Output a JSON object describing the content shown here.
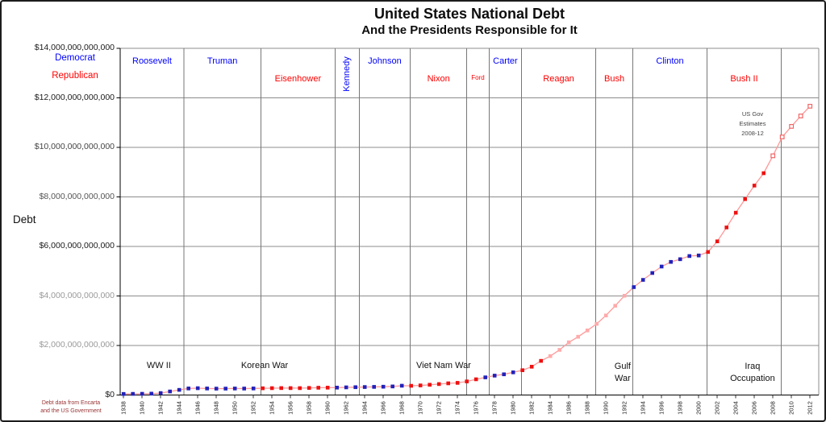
{
  "figure": {
    "title": "United States National Debt",
    "subtitle": "And the Presidents Responsible for It",
    "ylabel": "Debt",
    "legend": {
      "democrat": "Democrat",
      "republican": "Republican"
    },
    "estimates_note": [
      "US Gov",
      "Estimates",
      "2008-12"
    ],
    "source_note": [
      "Debt data from Encarta",
      "and the US Government"
    ],
    "colors": {
      "democrat_label": "#0000ff",
      "republican_label": "#ff0000",
      "marker_democrat": "#2222bb",
      "marker_republican": "#ee1111",
      "marker_faded": "#ffaaaa",
      "estimate_stroke": "#f06666",
      "line": "#ff9898",
      "grid": "#8c8c8c",
      "boundary": "#777777",
      "axis": "#000000",
      "tick_label": "#222222",
      "source_note": "#993333",
      "estimates_note": "#444444"
    }
  },
  "chart_data": {
    "type": "line",
    "title": "United States National Debt",
    "subtitle": "And the Presidents Responsible for It",
    "xlabel": "",
    "ylabel": "Debt",
    "units": "trillions of US dollars",
    "xlim": [
      1937.6,
      2012.95
    ],
    "ylim": [
      0,
      14000000000000
    ],
    "grid": "horizontal",
    "legend_position": "outside-top-left",
    "ytick_values_trillions": [
      14,
      12,
      10,
      8,
      6,
      4,
      2,
      0
    ],
    "ytick_labels": [
      "$14,000,000,000,000",
      "$12,000,000,000,000",
      "$10,000,000,000,000",
      "$8,000,000,000,000",
      "$6,000,000,000,000",
      "$4,000,000,000,000",
      "$2,000,000,000,000",
      "$0"
    ],
    "ytick_label_colors": [
      "#1a1a1a",
      "#1a1a1a",
      "#444444",
      "#555555",
      "#1a1a1a",
      "#999999",
      "#999999",
      "#1a1a1a"
    ],
    "xticks": [
      1938,
      1940,
      1942,
      1944,
      1946,
      1948,
      1950,
      1952,
      1954,
      1956,
      1958,
      1960,
      1962,
      1964,
      1966,
      1968,
      1970,
      1972,
      1974,
      1976,
      1978,
      1980,
      1982,
      1984,
      1986,
      1988,
      1990,
      1992,
      1994,
      1996,
      1998,
      2000,
      2002,
      2004,
      2006,
      2008,
      2010,
      2012
    ],
    "years": [
      1938,
      1939,
      1940,
      1941,
      1942,
      1943,
      1944,
      1945,
      1946,
      1947,
      1948,
      1949,
      1950,
      1951,
      1952,
      1953,
      1954,
      1955,
      1956,
      1957,
      1958,
      1959,
      1960,
      1961,
      1962,
      1963,
      1964,
      1965,
      1966,
      1967,
      1968,
      1969,
      1970,
      1971,
      1972,
      1973,
      1974,
      1975,
      1976,
      1977,
      1978,
      1979,
      1980,
      1981,
      1982,
      1983,
      1984,
      1985,
      1986,
      1987,
      1988,
      1989,
      1990,
      1991,
      1992,
      1993,
      1994,
      1995,
      1996,
      1997,
      1998,
      1999,
      2000,
      2001,
      2002,
      2003,
      2004,
      2005,
      2006,
      2007,
      2008,
      2009,
      2010,
      2011,
      2012
    ],
    "debt_trillions": [
      0.037,
      0.04,
      0.043,
      0.049,
      0.072,
      0.137,
      0.201,
      0.259,
      0.269,
      0.258,
      0.252,
      0.253,
      0.257,
      0.255,
      0.259,
      0.266,
      0.271,
      0.274,
      0.273,
      0.272,
      0.28,
      0.288,
      0.291,
      0.293,
      0.303,
      0.31,
      0.316,
      0.322,
      0.329,
      0.34,
      0.369,
      0.366,
      0.381,
      0.408,
      0.436,
      0.466,
      0.484,
      0.542,
      0.629,
      0.706,
      0.777,
      0.83,
      0.909,
      0.995,
      1.137,
      1.372,
      1.565,
      1.817,
      2.121,
      2.346,
      2.601,
      2.868,
      3.206,
      3.598,
      4.002,
      4.351,
      4.643,
      4.921,
      5.182,
      5.369,
      5.478,
      5.606,
      5.629,
      5.77,
      6.198,
      6.76,
      7.355,
      7.905,
      8.451,
      8.951,
      9.654,
      10.413,
      10.842,
      11.261,
      11.656
    ],
    "party_segments": [
      {
        "party": "D",
        "from": 1938,
        "to": 1952
      },
      {
        "party": "R",
        "from": 1953,
        "to": 1960
      },
      {
        "party": "D",
        "from": 1961,
        "to": 1968
      },
      {
        "party": "R",
        "from": 1969,
        "to": 1976
      },
      {
        "party": "D",
        "from": 1977,
        "to": 1980
      },
      {
        "party": "R",
        "from": 1981,
        "to": 1992
      },
      {
        "party": "D",
        "from": 1993,
        "to": 2000
      },
      {
        "party": "R",
        "from": 2001,
        "to": 2012
      }
    ],
    "estimate_from_year": 2008,
    "faded_year_range": [
      1984,
      1992
    ],
    "presidents": [
      {
        "name": "Roosevelt",
        "party": "D",
        "start": 1937.6,
        "end": 1944.5
      },
      {
        "name": "Truman",
        "party": "D",
        "start": 1944.5,
        "end": 1952.8
      },
      {
        "name": "Eisenhower",
        "party": "R",
        "start": 1952.8,
        "end": 1960.8
      },
      {
        "name": "Kennedy",
        "party": "D",
        "start": 1960.8,
        "end": 1963.4,
        "vertical": true
      },
      {
        "name": "Johnson",
        "party": "D",
        "start": 1963.4,
        "end": 1968.9
      },
      {
        "name": "Nixon",
        "party": "R",
        "start": 1968.9,
        "end": 1975.0
      },
      {
        "name": "Ford",
        "party": "R",
        "start": 1975.0,
        "end": 1977.4,
        "small": true
      },
      {
        "name": "Carter",
        "party": "D",
        "start": 1977.4,
        "end": 1980.9
      },
      {
        "name": "Reagan",
        "party": "R",
        "start": 1980.9,
        "end": 1988.9
      },
      {
        "name": "Bush",
        "party": "R",
        "start": 1988.9,
        "end": 1992.9
      },
      {
        "name": "Clinton",
        "party": "D",
        "start": 1992.9,
        "end": 2000.9
      },
      {
        "name": "Bush II",
        "party": "R",
        "start": 2000.9,
        "end": 2008.9
      }
    ],
    "annotations": [
      {
        "lines": [
          "WW II"
        ],
        "center_year": 1941.8
      },
      {
        "lines": [
          "Korean War"
        ],
        "center_year": 1953.2
      },
      {
        "lines": [
          "Viet Nam War"
        ],
        "center_year": 1972.5
      },
      {
        "lines": [
          "Gulf",
          "War"
        ],
        "center_year": 1991.8
      },
      {
        "lines": [
          "Iraq",
          "Occupation"
        ],
        "center_year": 2005.8
      }
    ]
  }
}
